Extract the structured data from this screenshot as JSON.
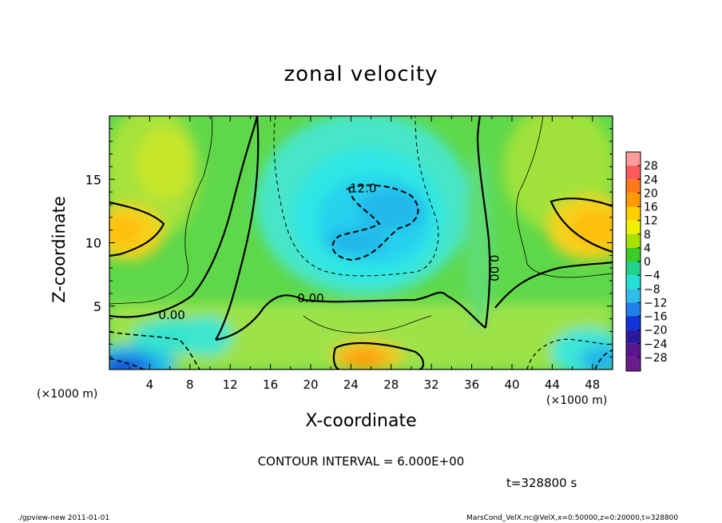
{
  "chart_data": {
    "type": "heatmap",
    "title": "zonal velocity",
    "xlabel": "X-coordinate",
    "ylabel": "Z-coordinate",
    "x_unit": "(×1000 m)",
    "y_unit_suffix": "",
    "xlim": [
      0,
      50
    ],
    "ylim": [
      0,
      20
    ],
    "x_ticks": [
      "4",
      "8",
      "12",
      "16",
      "20",
      "24",
      "28",
      "32",
      "36",
      "40",
      "44",
      "48"
    ],
    "y_ticks": [
      "5",
      "10",
      "15"
    ],
    "contour_labels": [
      "0.00",
      "0.00",
      "-12.0",
      "0.00"
    ],
    "contour_interval_text": "CONTOUR INTERVAL = 6.000E+00",
    "time_text": "t=328800 s",
    "colorbar": {
      "levels": [
        28,
        24,
        20,
        16,
        12,
        8,
        4,
        0,
        -4,
        -8,
        -12,
        -16,
        -20,
        -24,
        -28
      ],
      "colors": [
        "#ff9a9a",
        "#ff5a5a",
        "#ff7a1a",
        "#ff9b00",
        "#ffce00",
        "#f0f000",
        "#a8e000",
        "#3ccb28",
        "#20d28a",
        "#22e0d4",
        "#30bce8",
        "#1f7ee8",
        "#1233d8",
        "#2a1aa0",
        "#5a158c",
        "#6a1c8c"
      ]
    }
  },
  "footer": {
    "left": "./gpview-new  2011-01-01",
    "right": "MarsCond_VelX.nc@VelX,x=0:50000,z=0:20000,t=328800"
  },
  "colors": {
    "field_base": "#5fd83a",
    "positive": "#f2d21a",
    "negative": "#40e6d6"
  }
}
